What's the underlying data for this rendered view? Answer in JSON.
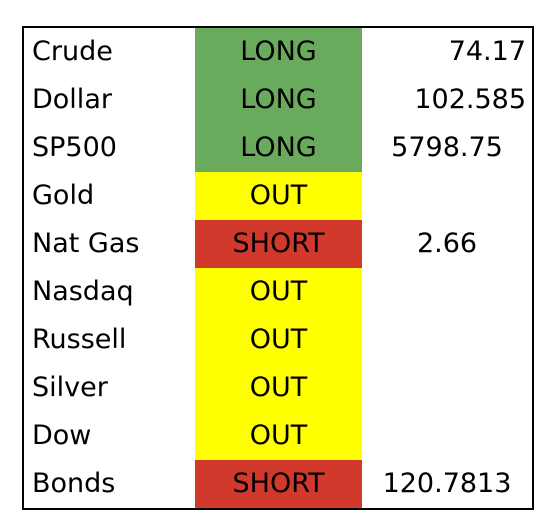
{
  "table": {
    "rows": [
      {
        "name": "Crude",
        "signal": "LONG",
        "color": "#6aaa5c",
        "value": "74.17",
        "align": "right"
      },
      {
        "name": "Dollar",
        "signal": "LONG",
        "color": "#6aaa5c",
        "value": "102.585",
        "align": "right"
      },
      {
        "name": "SP500",
        "signal": "LONG",
        "color": "#6aaa5c",
        "value": "5798.75",
        "align": "center"
      },
      {
        "name": "Gold",
        "signal": "OUT",
        "color": "#ffff00"
      },
      {
        "name": "Nat Gas",
        "signal": "SHORT",
        "color": "#d0392b",
        "value": "2.66",
        "align": "center"
      },
      {
        "name": "Nasdaq",
        "signal": "OUT",
        "color": "#ffff00"
      },
      {
        "name": "Russell",
        "signal": "OUT",
        "color": "#ffff00"
      },
      {
        "name": "Silver",
        "signal": "OUT",
        "color": "#ffff00"
      },
      {
        "name": "Dow",
        "signal": "OUT",
        "color": "#ffff00"
      },
      {
        "name": "Bonds",
        "signal": "SHORT",
        "color": "#d0392b",
        "value": "120.7813",
        "align": "center"
      }
    ]
  }
}
